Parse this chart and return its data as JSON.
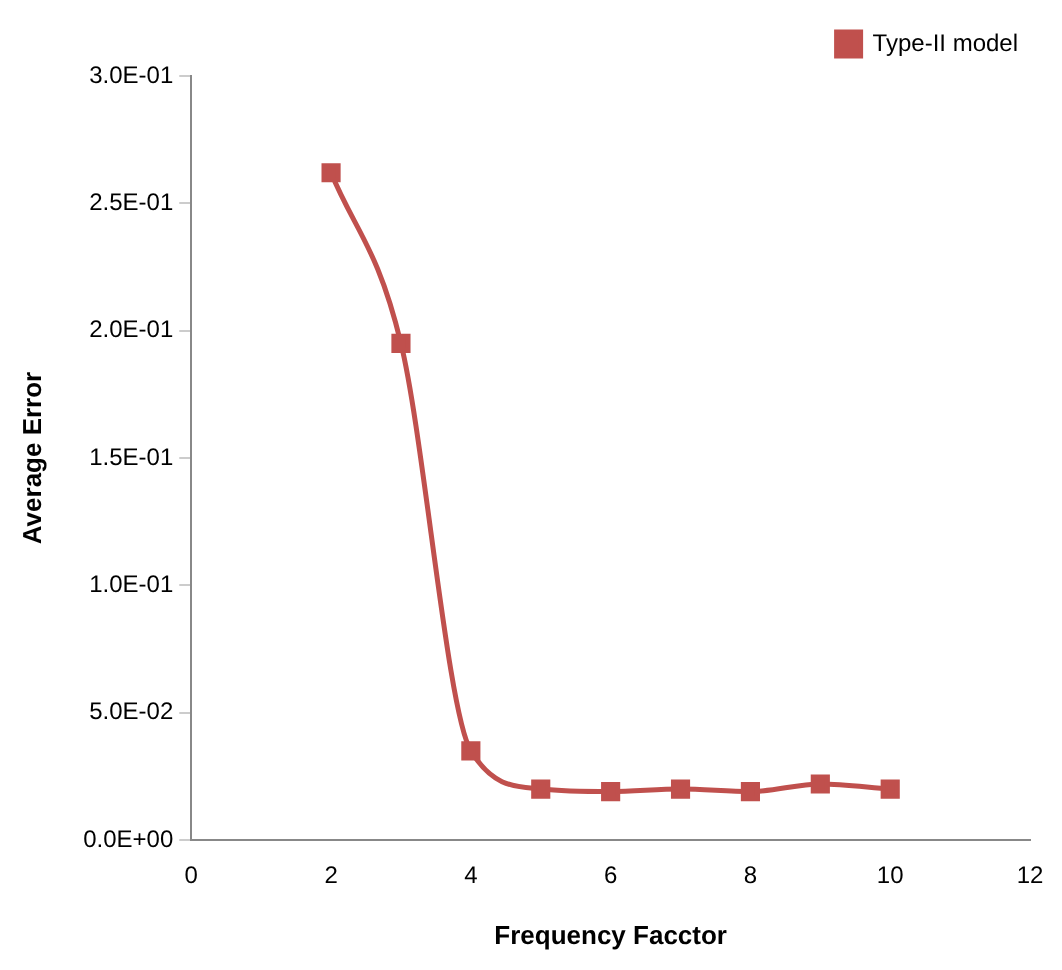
{
  "chart_data": {
    "type": "line",
    "xlabel": "Frequency Facctor",
    "ylabel": "Average Error",
    "x": [
      2,
      3,
      4,
      5,
      6,
      7,
      8,
      9,
      10
    ],
    "series": [
      {
        "name": "Type-II model",
        "color": "#c0504d",
        "values": [
          0.262,
          0.195,
          0.035,
          0.02,
          0.019,
          0.02,
          0.019,
          0.022,
          0.02
        ]
      }
    ],
    "xlim": [
      0,
      12
    ],
    "xticks": [
      0,
      2,
      4,
      6,
      8,
      10,
      12
    ],
    "ylim": [
      0,
      0.3
    ],
    "yticks": [
      {
        "value": 0,
        "label": "0.0E+00"
      },
      {
        "value": 0.05,
        "label": "5.0E-02"
      },
      {
        "value": 0.1,
        "label": "1.0E-01"
      },
      {
        "value": 0.15,
        "label": "1.5E-01"
      },
      {
        "value": 0.2,
        "label": "2.0E-01"
      },
      {
        "value": 0.25,
        "label": "2.5E-01"
      },
      {
        "value": 0.3,
        "label": "3.0E-01"
      }
    ],
    "grid": false,
    "legend": "top right",
    "marker": "square",
    "line_style": "solid"
  }
}
